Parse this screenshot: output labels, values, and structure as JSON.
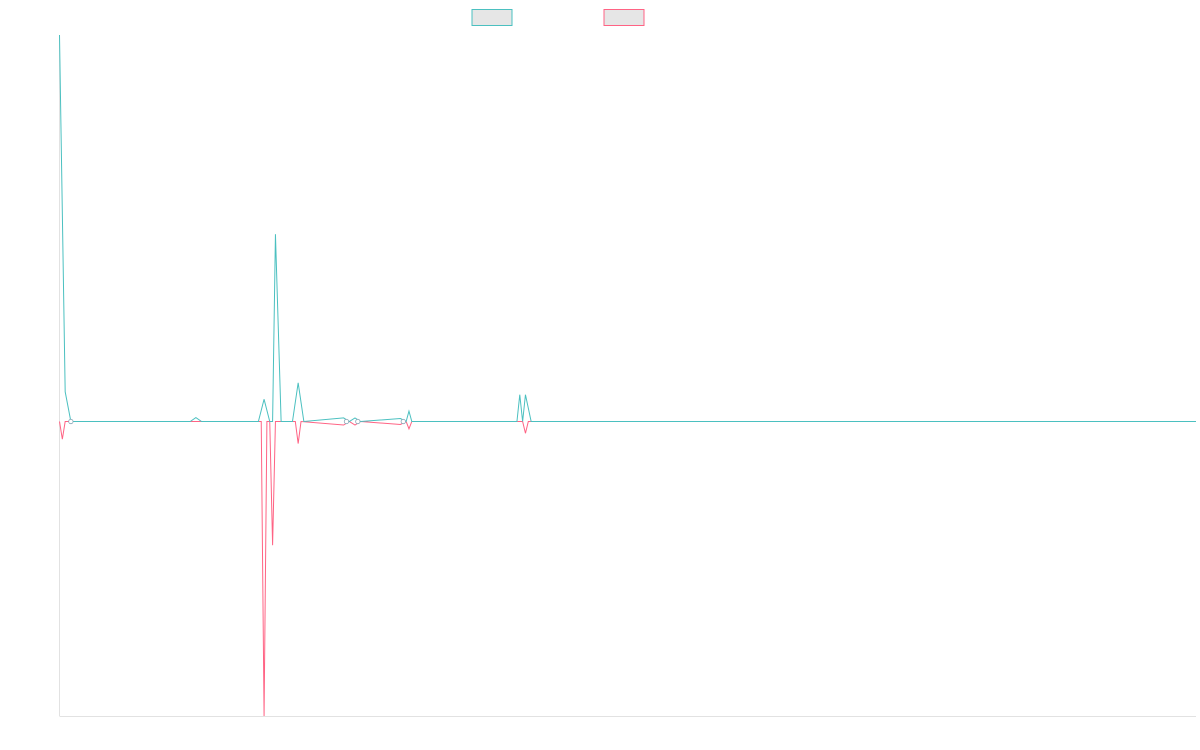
{
  "chart_data": {
    "type": "line",
    "title": "",
    "xlabel": "",
    "ylabel": "",
    "grid": false,
    "legend_placement": "top-center",
    "xlim": [
      0,
      200
    ],
    "ylim": [
      -100,
      130
    ],
    "baseline": 0,
    "series": [
      {
        "color": "#4bc0c0",
        "points": [
          [
            0,
            130
          ],
          [
            1,
            10
          ],
          [
            2,
            0
          ],
          [
            23,
            0
          ],
          [
            24,
            1.3
          ],
          [
            25,
            0
          ],
          [
            35,
            0
          ],
          [
            36,
            7.5
          ],
          [
            37,
            0
          ],
          [
            37.5,
            0
          ],
          [
            38,
            63
          ],
          [
            39,
            0
          ],
          [
            41,
            0
          ],
          [
            42,
            13
          ],
          [
            43,
            0
          ],
          [
            50,
            1.2
          ],
          [
            51,
            0
          ],
          [
            52,
            1.2
          ],
          [
            53,
            0
          ],
          [
            60,
            1
          ],
          [
            61,
            0
          ],
          [
            61.5,
            3.5
          ],
          [
            62,
            0
          ],
          [
            80.5,
            0
          ],
          [
            81,
            9
          ],
          [
            81.5,
            0
          ],
          [
            82,
            9
          ],
          [
            83,
            0
          ],
          [
            200,
            0
          ]
        ]
      },
      {
        "color": "#ff6384",
        "points": [
          [
            0,
            0
          ],
          [
            0.5,
            -6
          ],
          [
            1,
            0
          ],
          [
            35.5,
            0
          ],
          [
            36,
            -100
          ],
          [
            36.5,
            0
          ],
          [
            37,
            0
          ],
          [
            37.5,
            -42
          ],
          [
            38,
            0
          ],
          [
            41.5,
            0
          ],
          [
            42,
            -7.5
          ],
          [
            42.5,
            0
          ],
          [
            50,
            -1.2
          ],
          [
            51,
            0
          ],
          [
            52,
            -1.2
          ],
          [
            53,
            0
          ],
          [
            60,
            -1
          ],
          [
            61,
            0
          ],
          [
            61.5,
            -2.5
          ],
          [
            62,
            0
          ],
          [
            81.5,
            0
          ],
          [
            82,
            -4
          ],
          [
            82.5,
            0
          ],
          [
            200,
            0
          ]
        ]
      }
    ]
  }
}
